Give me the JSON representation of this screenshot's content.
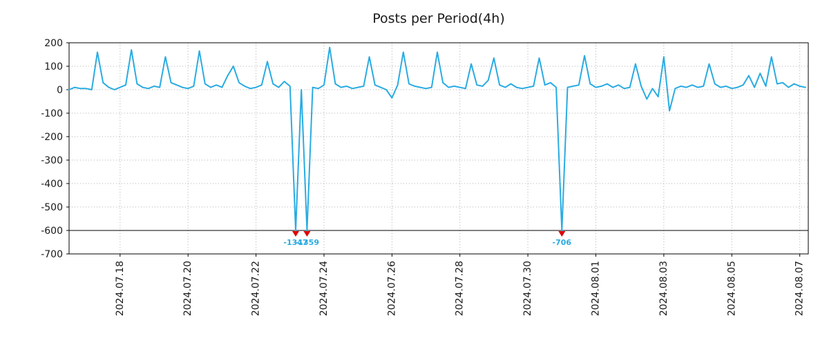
{
  "title": "Posts per Period(4h)",
  "chart_data": {
    "type": "line",
    "title": "Posts per Period(4h)",
    "xlabel": "",
    "ylabel": "",
    "grid": true,
    "legend": "none",
    "line_color": "#29abe2",
    "marker_color": "#e00000",
    "annotation_color": "#29abe2",
    "ylim": [
      -700,
      200
    ],
    "yticks": [
      200,
      100,
      0,
      -100,
      -200,
      -300,
      -400,
      -500,
      -600,
      -700
    ],
    "clip_y": -600,
    "x_start": "2024-07-16 12:00",
    "points_t_step": 4,
    "t_range": [
      0,
      522
    ],
    "xticks": [
      {
        "t": 36,
        "label": "2024.07.18"
      },
      {
        "t": 84,
        "label": "2024.07.20"
      },
      {
        "t": 132,
        "label": "2024.07.22"
      },
      {
        "t": 180,
        "label": "2024.07.24"
      },
      {
        "t": 228,
        "label": "2024.07.26"
      },
      {
        "t": 276,
        "label": "2024.07.28"
      },
      {
        "t": 324,
        "label": "2024.07.30"
      },
      {
        "t": 372,
        "label": "2024.08.01"
      },
      {
        "t": 420,
        "label": "2024.08.03"
      },
      {
        "t": 468,
        "label": "2024.08.05"
      },
      {
        "t": 516,
        "label": "2024.08.07"
      }
    ],
    "values": [
      0,
      10,
      5,
      5,
      0,
      160,
      30,
      10,
      0,
      10,
      20,
      170,
      25,
      10,
      5,
      15,
      10,
      140,
      30,
      20,
      10,
      5,
      15,
      165,
      25,
      10,
      20,
      10,
      60,
      100,
      30,
      15,
      5,
      10,
      20,
      120,
      25,
      10,
      35,
      15,
      -1347,
      0,
      -1359,
      10,
      5,
      20,
      180,
      25,
      10,
      15,
      5,
      10,
      15,
      140,
      20,
      10,
      0,
      -35,
      20,
      160,
      25,
      15,
      10,
      5,
      10,
      160,
      30,
      10,
      15,
      10,
      5,
      110,
      20,
      15,
      40,
      135,
      20,
      10,
      25,
      10,
      5,
      10,
      15,
      135,
      20,
      30,
      10,
      -706,
      10,
      15,
      20,
      145,
      25,
      10,
      15,
      25,
      10,
      20,
      5,
      10,
      110,
      15,
      -40,
      5,
      -30,
      140,
      -90,
      5,
      15,
      10,
      20,
      10,
      15,
      110,
      25,
      10,
      15,
      5,
      10,
      20,
      60,
      10,
      70,
      15,
      140,
      25,
      30,
      10,
      25,
      15,
      10
    ],
    "clipped_annotations": [
      {
        "t": 160,
        "value": -1347,
        "label": "-1347"
      },
      {
        "t": 168,
        "value": -1359,
        "label": "-1359"
      },
      {
        "t": 348,
        "value": -706,
        "label": "-706"
      }
    ]
  }
}
